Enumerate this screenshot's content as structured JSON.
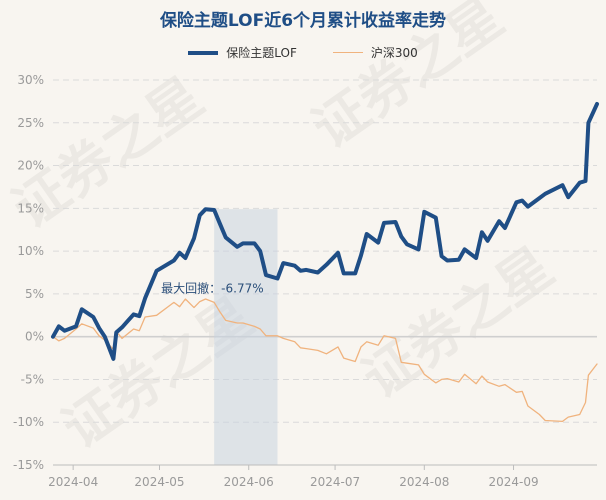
{
  "chart_data": {
    "type": "line",
    "title": "保险主题LOF近6个月累计收益率走势",
    "xlabel": "",
    "ylabel": "",
    "ylim": [
      -15,
      30
    ],
    "yticks": [
      -15,
      -10,
      -5,
      0,
      5,
      10,
      15,
      20,
      25,
      30
    ],
    "ytick_labels": [
      "-15%",
      "-10%",
      "-5%",
      "0%",
      "5%",
      "10%",
      "15%",
      "20%",
      "25%",
      "30%"
    ],
    "x_range": [
      "2024-03-25",
      "2024-09-30"
    ],
    "xticks": [
      "2024-04",
      "2024-05",
      "2024-06",
      "2024-07",
      "2024-08",
      "2024-09"
    ],
    "grid": true,
    "legend_position": "top-center",
    "annotation": {
      "label": "最大回撤：-6.77%",
      "span": [
        "2024-05-20",
        "2024-06-11"
      ]
    },
    "watermark": "证券之星",
    "series": [
      {
        "name": "保险主题LOF",
        "color": "#1f4e86",
        "x": [
          "2024-03-25",
          "2024-03-27",
          "2024-03-29",
          "2024-04-02",
          "2024-04-04",
          "2024-04-08",
          "2024-04-10",
          "2024-04-12",
          "2024-04-15",
          "2024-04-16",
          "2024-04-18",
          "2024-04-22",
          "2024-04-24",
          "2024-04-26",
          "2024-04-30",
          "2024-05-06",
          "2024-05-08",
          "2024-05-10",
          "2024-05-13",
          "2024-05-15",
          "2024-05-17",
          "2024-05-20",
          "2024-05-22",
          "2024-05-24",
          "2024-05-28",
          "2024-05-30",
          "2024-06-03",
          "2024-06-05",
          "2024-06-07",
          "2024-06-11",
          "2024-06-13",
          "2024-06-17",
          "2024-06-19",
          "2024-06-21",
          "2024-06-25",
          "2024-06-28",
          "2024-07-02",
          "2024-07-04",
          "2024-07-08",
          "2024-07-10",
          "2024-07-12",
          "2024-07-16",
          "2024-07-18",
          "2024-07-22",
          "2024-07-24",
          "2024-07-26",
          "2024-07-30",
          "2024-08-01",
          "2024-08-05",
          "2024-08-07",
          "2024-08-09",
          "2024-08-13",
          "2024-08-15",
          "2024-08-19",
          "2024-08-21",
          "2024-08-23",
          "2024-08-27",
          "2024-08-29",
          "2024-09-02",
          "2024-09-04",
          "2024-09-06",
          "2024-09-10",
          "2024-09-12",
          "2024-09-18",
          "2024-09-20",
          "2024-09-24",
          "2024-09-26",
          "2024-09-27",
          "2024-09-30"
        ],
        "values": [
          0,
          1.2,
          0.7,
          1.2,
          3.2,
          2.3,
          1.0,
          0,
          -2.6,
          0.5,
          1.1,
          2.6,
          2.4,
          4.5,
          7.7,
          8.9,
          9.8,
          9.2,
          11.5,
          14.2,
          14.9,
          14.8,
          13.2,
          11.6,
          10.5,
          10.9,
          10.9,
          10.0,
          7.2,
          6.8,
          8.6,
          8.3,
          7.7,
          7.8,
          7.5,
          8.4,
          9.8,
          7.4,
          7.4,
          9.5,
          12.0,
          11.0,
          13.3,
          13.4,
          11.7,
          10.8,
          10.2,
          14.6,
          13.9,
          9.4,
          8.9,
          9.0,
          10.2,
          9.2,
          12.2,
          11.2,
          13.5,
          12.7,
          15.7,
          15.9,
          15.2,
          16.2,
          16.7,
          17.7,
          16.3,
          18.0,
          18.2,
          25.0,
          27.2
        ]
      },
      {
        "name": "沪深300",
        "color": "#f0b37e",
        "x": [
          "2024-03-25",
          "2024-03-27",
          "2024-03-29",
          "2024-04-02",
          "2024-04-04",
          "2024-04-08",
          "2024-04-10",
          "2024-04-12",
          "2024-04-15",
          "2024-04-16",
          "2024-04-18",
          "2024-04-22",
          "2024-04-24",
          "2024-04-26",
          "2024-04-30",
          "2024-05-06",
          "2024-05-08",
          "2024-05-10",
          "2024-05-13",
          "2024-05-15",
          "2024-05-17",
          "2024-05-20",
          "2024-05-22",
          "2024-05-24",
          "2024-05-28",
          "2024-05-30",
          "2024-06-03",
          "2024-06-05",
          "2024-06-07",
          "2024-06-11",
          "2024-06-13",
          "2024-06-17",
          "2024-06-19",
          "2024-06-21",
          "2024-06-25",
          "2024-06-28",
          "2024-07-02",
          "2024-07-04",
          "2024-07-08",
          "2024-07-10",
          "2024-07-12",
          "2024-07-16",
          "2024-07-18",
          "2024-07-22",
          "2024-07-24",
          "2024-07-26",
          "2024-07-30",
          "2024-08-01",
          "2024-08-05",
          "2024-08-07",
          "2024-08-09",
          "2024-08-13",
          "2024-08-15",
          "2024-08-19",
          "2024-08-21",
          "2024-08-23",
          "2024-08-27",
          "2024-08-29",
          "2024-09-02",
          "2024-09-04",
          "2024-09-06",
          "2024-09-10",
          "2024-09-12",
          "2024-09-18",
          "2024-09-20",
          "2024-09-24",
          "2024-09-26",
          "2024-09-27",
          "2024-09-30"
        ],
        "values": [
          0,
          -0.5,
          -0.2,
          0.9,
          1.5,
          1.0,
          0.1,
          -0.4,
          -1.5,
          0.6,
          -0.2,
          0.9,
          0.7,
          2.3,
          2.5,
          4.0,
          3.5,
          4.4,
          3.4,
          4.1,
          4.4,
          4.0,
          2.9,
          1.9,
          1.6,
          1.6,
          1.2,
          0.9,
          0.1,
          0.1,
          -0.2,
          -0.6,
          -1.3,
          -1.4,
          -1.6,
          -2.0,
          -1.2,
          -2.5,
          -2.9,
          -1.2,
          -0.6,
          -1.0,
          0.1,
          -0.2,
          -3.0,
          -3.1,
          -3.3,
          -4.4,
          -5.4,
          -5.0,
          -4.9,
          -5.3,
          -4.4,
          -5.5,
          -4.6,
          -5.3,
          -5.8,
          -5.6,
          -6.5,
          -6.4,
          -8.1,
          -9.1,
          -9.8,
          -9.9,
          -9.4,
          -9.1,
          -7.7,
          -4.5,
          -3.2
        ]
      }
    ]
  }
}
